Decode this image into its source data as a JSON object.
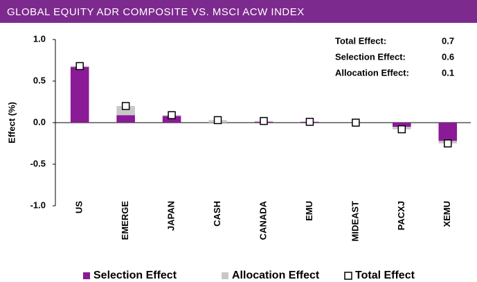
{
  "chart_data": {
    "type": "bar",
    "title": "GLOBAL EQUITY ADR COMPOSITE VS. MSCI ACW INDEX",
    "y_label": "Effect (%)",
    "categories": [
      "US",
      "EMERGE",
      "JAPAN",
      "CASH",
      "CANADA",
      "EMU",
      "MIDEAST",
      "PACXJ",
      "XEMU"
    ],
    "series": [
      {
        "name": "Selection Effect",
        "color": "#8b1a96",
        "values": [
          0.67,
          0.09,
          0.08,
          0.0,
          0.01,
          0.01,
          0.0,
          -0.05,
          -0.22
        ]
      },
      {
        "name": "Allocation Effect",
        "color": "#c8c8c8",
        "values": [
          0.01,
          0.11,
          0.01,
          0.03,
          0.01,
          0.0,
          0.0,
          -0.03,
          -0.03
        ]
      },
      {
        "name": "Total Effect",
        "color": "#000000",
        "values": [
          0.68,
          0.2,
          0.09,
          0.03,
          0.02,
          0.01,
          0.0,
          -0.08,
          -0.25
        ]
      }
    ],
    "ylim": [
      -1.0,
      1.0
    ],
    "yticks": [
      {
        "value": 1.0,
        "label": "1.0"
      },
      {
        "value": 0.5,
        "label": "0.5"
      },
      {
        "value": 0.0,
        "label": "0.0"
      },
      {
        "value": -0.5,
        "label": "-0.5"
      },
      {
        "value": -1.0,
        "label": "-1.0"
      }
    ],
    "stats": [
      {
        "label": "Total Effect:",
        "value": 0.7
      },
      {
        "label": "Selection Effect:",
        "value": 0.6
      },
      {
        "label": "Allocation Effect:",
        "value": 0.1
      }
    ]
  }
}
